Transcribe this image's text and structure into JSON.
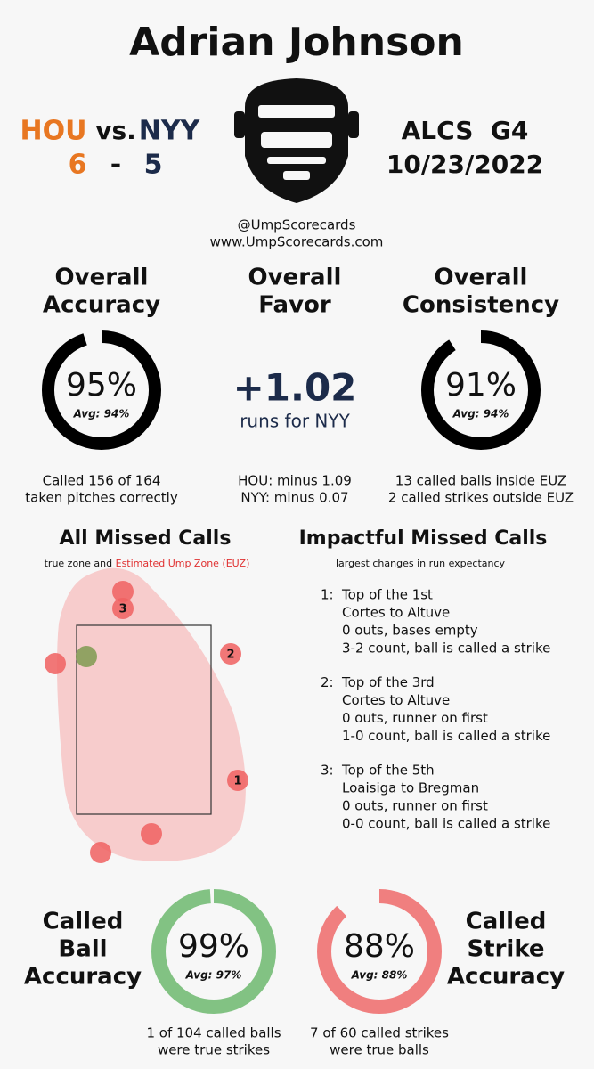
{
  "header": {
    "umpire": "Adrian Johnson",
    "away_team": "HOU",
    "versus": "vs.",
    "home_team": "NYY",
    "away_score": 6,
    "score_separator": "-",
    "home_score": 5,
    "game": "ALCS  G4",
    "date": "10/23/2022",
    "handle": "@UmpScorecards",
    "website": "www.UmpScorecards.com"
  },
  "overall": {
    "accuracy": {
      "title": [
        "Overall",
        "Accuracy"
      ],
      "value": 95,
      "value_label": "95%",
      "average": "Avg: 94%",
      "color": "#000000",
      "notes": [
        "Called 156 of 164",
        "taken pitches correctly"
      ]
    },
    "favor": {
      "title": [
        "Overall",
        "Favor"
      ],
      "value": "+1.02",
      "unit": "runs for NYY",
      "notes": [
        "HOU: minus 1.09",
        "NYY: minus 0.07"
      ]
    },
    "consistency": {
      "title": [
        "Overall",
        "Consistency"
      ],
      "value": 91,
      "value_label": "91%",
      "average": "Avg: 94%",
      "color": "#000000",
      "notes": [
        "13 called balls inside EUZ",
        "2 called strikes outside EUZ"
      ]
    }
  },
  "missed_calls": {
    "title": "All Missed Calls",
    "subtitle": "true zone and",
    "subtitle_highlight": "Estimated Ump Zone (EUZ)",
    "pitch_labels": [
      "1",
      "2",
      "3"
    ]
  },
  "impactful": {
    "title": "Impactful Missed Calls",
    "subtitle": "largest changes in run expectancy",
    "calls": [
      {
        "rank": "1:",
        "lines": [
          "Top of the 1st",
          "Cortes to Altuve",
          "0 outs, bases empty",
          "3-2 count, ball is called a strike"
        ]
      },
      {
        "rank": "2:",
        "lines": [
          "Top of the 3rd",
          "Cortes to Altuve",
          "0 outs, runner on first",
          "1-0 count, ball is called a strike"
        ]
      },
      {
        "rank": "3:",
        "lines": [
          "Top of the 5th",
          "Loaisiga to Bregman",
          "0 outs, runner on first",
          "0-0 count, ball is called a strike"
        ]
      }
    ]
  },
  "called_ball": {
    "title": [
      "Called",
      "Ball",
      "Accuracy"
    ],
    "value": 99,
    "value_label": "99%",
    "average": "Avg: 97%",
    "color": "#82c283",
    "notes": [
      "1 of 104 called balls",
      "were true strikes"
    ]
  },
  "called_strike": {
    "title": [
      "Called",
      "Strike",
      "Accuracy"
    ],
    "value": 88,
    "value_label": "88%",
    "average": "Avg: 88%",
    "color": "#f07f7f",
    "notes": [
      "7 of 60 called strikes",
      "were true balls"
    ]
  }
}
